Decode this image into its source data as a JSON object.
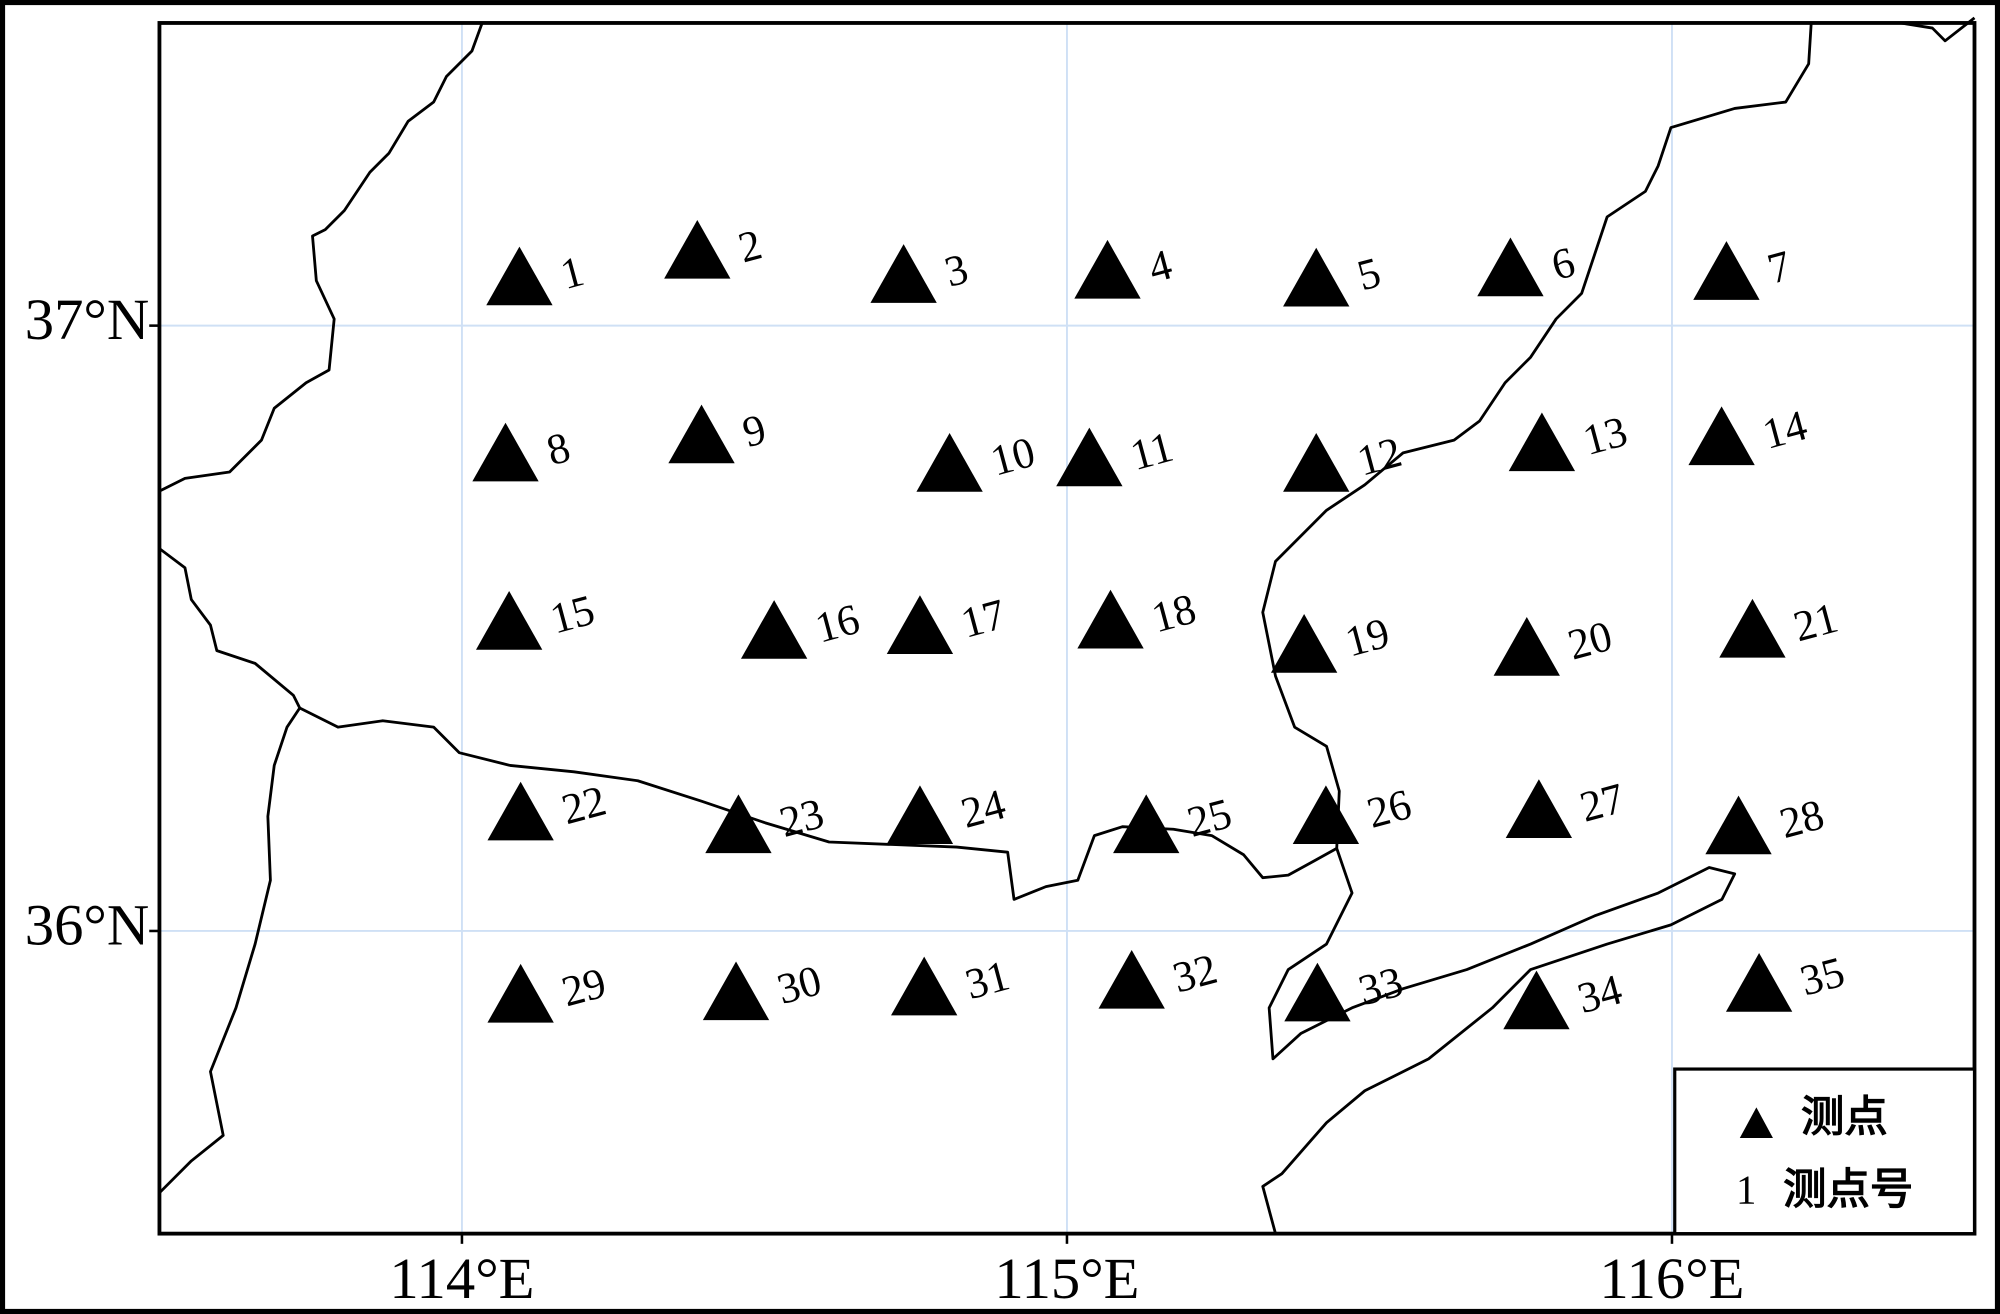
{
  "map": {
    "xlim": [
      113.5,
      116.5
    ],
    "ylim": [
      35.5,
      37.5
    ],
    "xticks": [
      {
        "value": 114,
        "label": "114°E"
      },
      {
        "value": 115,
        "label": "115°E"
      },
      {
        "value": 116,
        "label": "116°E"
      }
    ],
    "yticks": [
      {
        "value": 36,
        "label": "36°N"
      },
      {
        "value": 37,
        "label": "37°N"
      }
    ],
    "grid": true,
    "marker_color": "#000000",
    "stations": [
      {
        "label": "1",
        "lon": 114.095,
        "lat": 37.08
      },
      {
        "label": "2",
        "lon": 114.389,
        "lat": 37.124
      },
      {
        "label": "3",
        "lon": 114.73,
        "lat": 37.084
      },
      {
        "label": "4",
        "lon": 115.067,
        "lat": 37.091
      },
      {
        "label": "5",
        "lon": 115.412,
        "lat": 37.078
      },
      {
        "label": "6",
        "lon": 115.733,
        "lat": 37.095
      },
      {
        "label": "7",
        "lon": 116.09,
        "lat": 37.089
      },
      {
        "label": "8",
        "lon": 114.072,
        "lat": 36.789
      },
      {
        "label": "9",
        "lon": 114.396,
        "lat": 36.819
      },
      {
        "label": "10",
        "lon": 114.806,
        "lat": 36.772
      },
      {
        "label": "11",
        "lon": 115.037,
        "lat": 36.781
      },
      {
        "label": "12",
        "lon": 115.412,
        "lat": 36.772
      },
      {
        "label": "13",
        "lon": 115.785,
        "lat": 36.806
      },
      {
        "label": "14",
        "lon": 116.082,
        "lat": 36.816
      },
      {
        "label": "15",
        "lon": 114.078,
        "lat": 36.511
      },
      {
        "label": "16",
        "lon": 114.516,
        "lat": 36.496
      },
      {
        "label": "17",
        "lon": 114.757,
        "lat": 36.504
      },
      {
        "label": "18",
        "lon": 115.072,
        "lat": 36.513
      },
      {
        "label": "19",
        "lon": 115.392,
        "lat": 36.473
      },
      {
        "label": "20",
        "lon": 115.76,
        "lat": 36.468
      },
      {
        "label": "21",
        "lon": 116.133,
        "lat": 36.498
      },
      {
        "label": "22",
        "lon": 114.097,
        "lat": 36.196
      },
      {
        "label": "23",
        "lon": 114.457,
        "lat": 36.175
      },
      {
        "label": "24",
        "lon": 114.757,
        "lat": 36.19
      },
      {
        "label": "25",
        "lon": 115.131,
        "lat": 36.175
      },
      {
        "label": "26",
        "lon": 115.428,
        "lat": 36.19
      },
      {
        "label": "27",
        "lon": 115.78,
        "lat": 36.2
      },
      {
        "label": "28",
        "lon": 116.11,
        "lat": 36.173
      },
      {
        "label": "29",
        "lon": 114.097,
        "lat": 35.895
      },
      {
        "label": "30",
        "lon": 114.453,
        "lat": 35.899
      },
      {
        "label": "31",
        "lon": 114.764,
        "lat": 35.907
      },
      {
        "label": "32",
        "lon": 115.107,
        "lat": 35.918
      },
      {
        "label": "33",
        "lon": 115.414,
        "lat": 35.897
      },
      {
        "label": "34",
        "lon": 115.776,
        "lat": 35.884
      },
      {
        "label": "35",
        "lon": 116.144,
        "lat": 35.913
      }
    ],
    "legend": {
      "marker_text": "测点",
      "number_sample": "1",
      "number_text": "测点号"
    }
  }
}
